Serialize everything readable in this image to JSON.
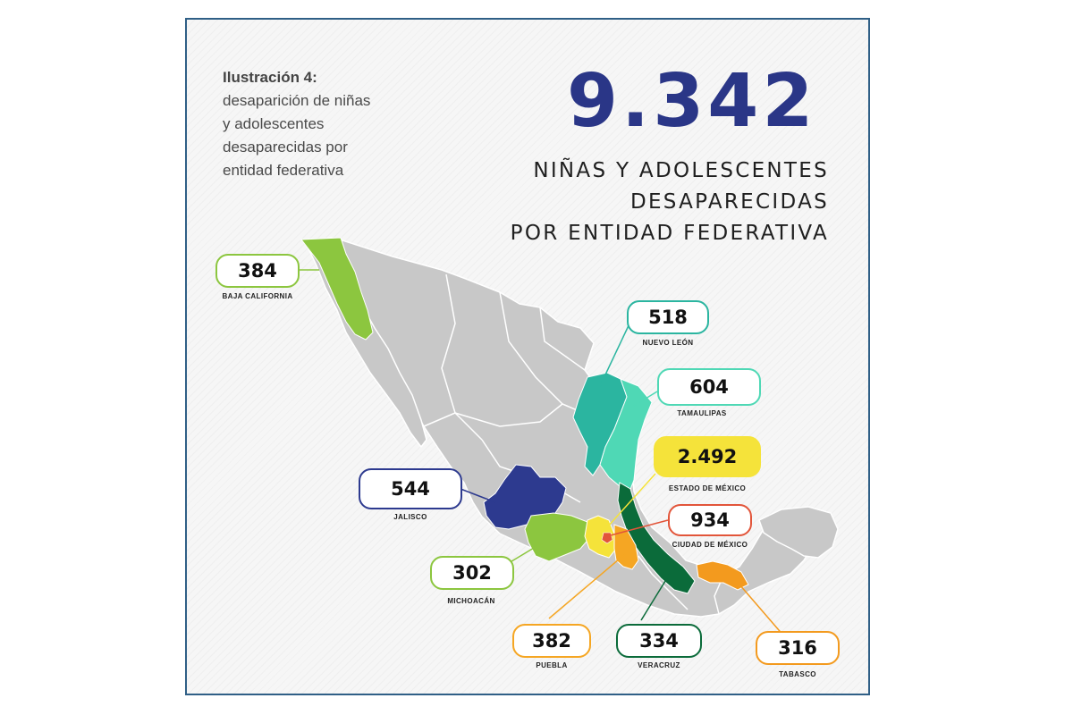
{
  "caption": {
    "label": "Ilustración 4:",
    "lines": [
      "desaparición de niñas",
      "y adolescentes",
      "desaparecidas por",
      "entidad federativa"
    ]
  },
  "headline": {
    "total": "9.342",
    "lines": [
      "NIÑAS Y ADOLESCENTES",
      "DESAPARECIDAS",
      "POR ENTIDAD FEDERATIVA"
    ]
  },
  "states": [
    {
      "name": "BAJA CALIFORNIA",
      "value": "384",
      "color": "#8cc63f"
    },
    {
      "name": "NUEVO LEÓN",
      "value": "518",
      "color": "#2bb5a0"
    },
    {
      "name": "TAMAULIPAS",
      "value": "604",
      "color": "#4fd8b5"
    },
    {
      "name": "ESTADO DE MÉXICO",
      "value": "2.492",
      "color": "#f5e33a"
    },
    {
      "name": "CIUDAD DE MÉXICO",
      "value": "934",
      "color": "#e2553a"
    },
    {
      "name": "JALISCO",
      "value": "544",
      "color": "#2d3a8f"
    },
    {
      "name": "MICHOACÁN",
      "value": "302",
      "color": "#8cc63f"
    },
    {
      "name": "PUEBLA",
      "value": "382",
      "color": "#f5a623"
    },
    {
      "name": "VERACRUZ",
      "value": "334",
      "color": "#0b6b3a"
    },
    {
      "name": "TABASCO",
      "value": "316",
      "color": "#f39a1e"
    }
  ],
  "colors": {
    "headline": "#2a3687",
    "frame_border": "#2f5f86",
    "base_state": "#c8c8c8"
  }
}
